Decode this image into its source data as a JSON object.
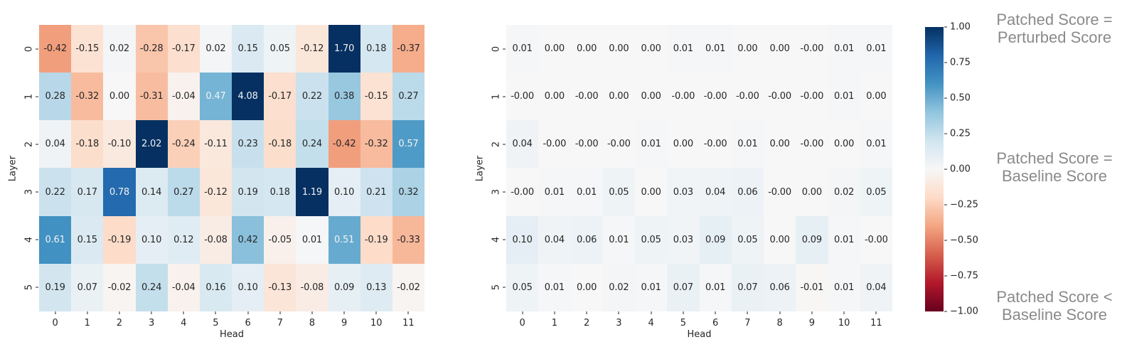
{
  "colors": {
    "background": "#ffffff",
    "annotation_text": "#8a8a8a",
    "tick_text": "#262626",
    "cell_text_dark": "#262626",
    "cell_text_light": "#f2f2f2",
    "rdbu_stops": [
      "#67001f",
      "#b2182b",
      "#d6604d",
      "#f4a582",
      "#fddbc7",
      "#f7f7f7",
      "#d1e5f0",
      "#92c5de",
      "#4393c3",
      "#2166ac",
      "#053061"
    ]
  },
  "chart_data": [
    {
      "type": "heatmap",
      "name": "left-patching-heatmap",
      "xlabel": "Head",
      "ylabel": "Layer",
      "x_ticks": [
        "0",
        "1",
        "2",
        "3",
        "4",
        "5",
        "6",
        "7",
        "8",
        "9",
        "10",
        "11"
      ],
      "y_ticks": [
        "0",
        "1",
        "2",
        "3",
        "4",
        "5"
      ],
      "vmin": -1,
      "vmax": 1,
      "colormap": "RdBu",
      "values": [
        [
          "-0.42",
          "-0.15",
          "0.02",
          "-0.28",
          "-0.17",
          "0.02",
          "0.15",
          "0.05",
          "-0.12",
          "1.70",
          "0.18",
          "-0.37"
        ],
        [
          "0.28",
          "-0.32",
          "0.00",
          "-0.31",
          "-0.04",
          "0.47",
          "4.08",
          "-0.17",
          "0.22",
          "0.38",
          "-0.15",
          "0.27"
        ],
        [
          "0.04",
          "-0.18",
          "-0.10",
          "2.02",
          "-0.24",
          "-0.11",
          "0.23",
          "-0.18",
          "0.24",
          "-0.42",
          "-0.32",
          "0.57"
        ],
        [
          "0.22",
          "0.17",
          "0.78",
          "0.14",
          "0.27",
          "-0.12",
          "0.19",
          "0.18",
          "1.19",
          "0.10",
          "0.21",
          "0.32"
        ],
        [
          "0.61",
          "0.15",
          "-0.19",
          "0.10",
          "0.12",
          "-0.08",
          "0.42",
          "-0.05",
          "0.01",
          "0.51",
          "-0.19",
          "-0.33"
        ],
        [
          "0.19",
          "0.07",
          "-0.02",
          "0.24",
          "-0.04",
          "0.16",
          "0.10",
          "-0.13",
          "-0.08",
          "0.09",
          "0.13",
          "-0.02"
        ]
      ]
    },
    {
      "type": "heatmap",
      "name": "right-patching-heatmap",
      "xlabel": "Head",
      "ylabel": "Layer",
      "x_ticks": [
        "0",
        "1",
        "2",
        "3",
        "4",
        "5",
        "6",
        "7",
        "8",
        "9",
        "10",
        "11"
      ],
      "y_ticks": [
        "0",
        "1",
        "2",
        "3",
        "4",
        "5"
      ],
      "vmin": -1,
      "vmax": 1,
      "colormap": "RdBu",
      "values": [
        [
          "0.01",
          "0.00",
          "0.00",
          "0.00",
          "0.00",
          "0.01",
          "0.01",
          "0.00",
          "0.00",
          "-0.00",
          "0.01",
          "0.01"
        ],
        [
          "-0.00",
          "0.00",
          "-0.00",
          "0.00",
          "0.00",
          "-0.00",
          "-0.00",
          "-0.00",
          "-0.00",
          "-0.00",
          "0.01",
          "0.00"
        ],
        [
          "0.04",
          "-0.00",
          "-0.00",
          "-0.00",
          "0.01",
          "0.00",
          "-0.00",
          "0.01",
          "0.00",
          "-0.00",
          "0.00",
          "0.01"
        ],
        [
          "-0.00",
          "0.01",
          "0.01",
          "0.05",
          "0.00",
          "0.03",
          "0.04",
          "0.06",
          "-0.00",
          "0.00",
          "0.02",
          "0.05"
        ],
        [
          "0.10",
          "0.04",
          "0.06",
          "0.01",
          "0.05",
          "0.03",
          "0.09",
          "0.05",
          "0.00",
          "0.09",
          "0.01",
          "-0.00"
        ],
        [
          "0.05",
          "0.01",
          "0.00",
          "0.02",
          "0.01",
          "0.07",
          "0.01",
          "0.07",
          "0.06",
          "-0.01",
          "0.01",
          "0.04"
        ]
      ]
    }
  ],
  "colorbar": {
    "ticks": [
      "1.00",
      "0.75",
      "0.50",
      "0.25",
      "0.00",
      "−0.25",
      "−0.50",
      "−0.75",
      "−1.00"
    ]
  },
  "legend": {
    "items": [
      {
        "line1": "Patched Score =",
        "line2": "Perturbed Score"
      },
      {
        "line1": "Patched Score =",
        "line2": "Baseline Score"
      },
      {
        "line1": "Patched Score <",
        "line2": "Baseline Score"
      }
    ]
  }
}
